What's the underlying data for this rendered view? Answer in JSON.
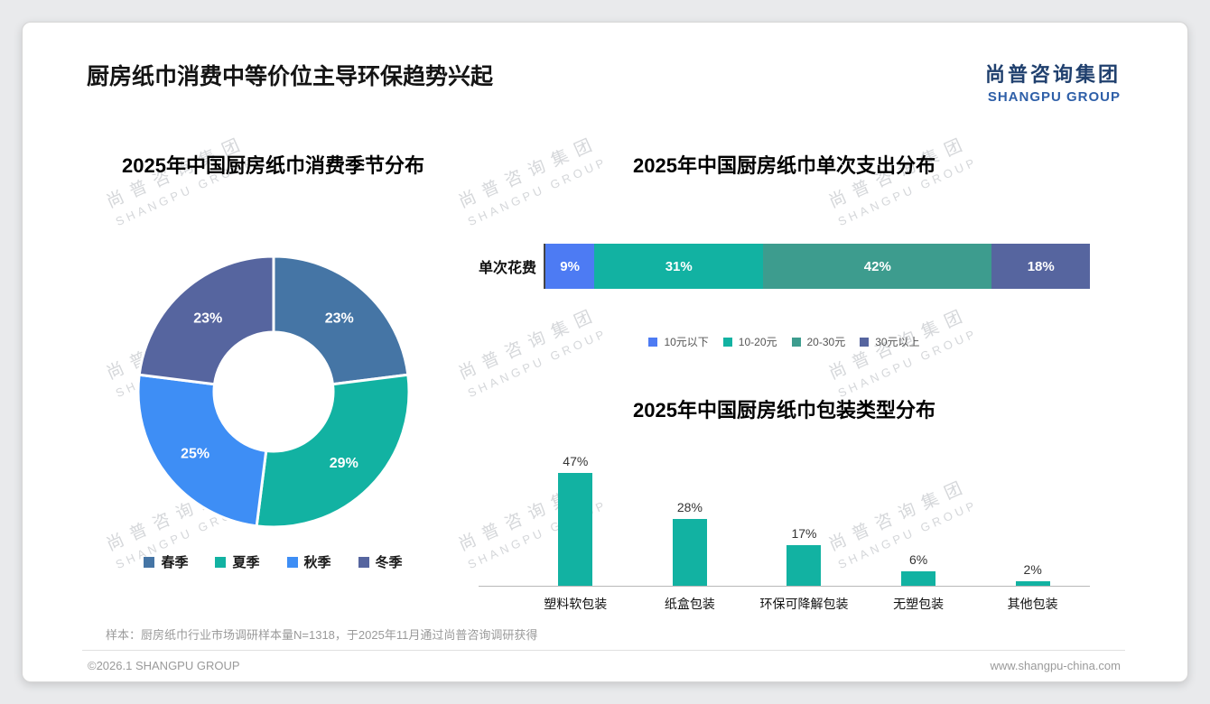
{
  "page": {
    "title": "厨房纸巾消费中等价位主导环保趋势兴起",
    "logo": {
      "cn": "尚普咨询集团",
      "en": "SHANGPU GROUP"
    },
    "watermark": {
      "line1": "尚普咨询集团",
      "line2": "SHANGPU GROUP"
    },
    "footer": {
      "note": "样本：厨房纸巾行业市场调研样本量N=1318，于2025年11月通过尚普咨询调研获得",
      "copyright": "©2026.1 SHANGPU GROUP",
      "website": "www.shangpu-china.com"
    }
  },
  "chart_data": [
    {
      "type": "pie",
      "subtype": "donut",
      "title": "2025年中国厨房纸巾消费季节分布",
      "categories": [
        "春季",
        "夏季",
        "秋季",
        "冬季"
      ],
      "values": [
        23,
        29,
        25,
        23
      ],
      "labels": [
        "23%",
        "29%",
        "25%",
        "23%"
      ],
      "colors": [
        "#4575a5",
        "#12b2a2",
        "#3e8ef5",
        "#56659f"
      ],
      "legend_position": "bottom"
    },
    {
      "type": "bar",
      "subtype": "stacked-horizontal",
      "title": "2025年中国厨房纸巾单次支出分布",
      "row_label": "单次花费",
      "categories": [
        "10元以下",
        "10-20元",
        "20-30元",
        "30元以上"
      ],
      "values": [
        9,
        31,
        42,
        18
      ],
      "labels": [
        "9%",
        "31%",
        "42%",
        "18%"
      ],
      "colors": [
        "#4d7bf3",
        "#12b2a2",
        "#3d9c8e",
        "#56659f"
      ],
      "legend_position": "bottom"
    },
    {
      "type": "bar",
      "title": "2025年中国厨房纸巾包装类型分布",
      "categories": [
        "塑料软包装",
        "纸盒包装",
        "环保可降解包装",
        "无塑包装",
        "其他包装"
      ],
      "values": [
        47,
        28,
        17,
        6,
        2
      ],
      "labels": [
        "47%",
        "28%",
        "17%",
        "6%",
        "2%"
      ],
      "bar_color": "#12b2a2",
      "ylim": [
        0,
        50
      ],
      "grid": false
    }
  ]
}
